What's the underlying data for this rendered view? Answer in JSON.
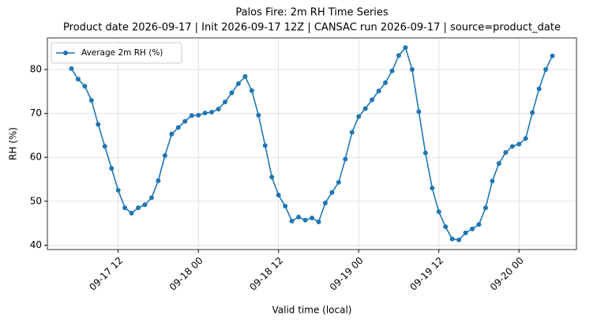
{
  "chart_data": {
    "type": "line",
    "title": "Palos Fire: 2m RH Time Series",
    "subtitle": "Product date 2026-09-17 | Init 2026-09-17 12Z | CANSAC run 2026-09-17 | source=product_date",
    "x_label": "Valid time (local)",
    "y_label": "RH (%)",
    "x": [
      "09-17 05",
      "09-17 06",
      "09-17 07",
      "09-17 08",
      "09-17 09",
      "09-17 10",
      "09-17 11",
      "09-17 12",
      "09-17 13",
      "09-17 14",
      "09-17 15",
      "09-17 16",
      "09-17 17",
      "09-17 18",
      "09-17 19",
      "09-17 20",
      "09-17 21",
      "09-17 22",
      "09-17 23",
      "09-18 00",
      "09-18 01",
      "09-18 02",
      "09-18 03",
      "09-18 04",
      "09-18 05",
      "09-18 06",
      "09-18 07",
      "09-18 08",
      "09-18 09",
      "09-18 10",
      "09-18 11",
      "09-18 12",
      "09-18 13",
      "09-18 14",
      "09-18 15",
      "09-18 16",
      "09-18 17",
      "09-18 18",
      "09-18 19",
      "09-18 20",
      "09-18 21",
      "09-18 22",
      "09-18 23",
      "09-19 00",
      "09-19 01",
      "09-19 02",
      "09-19 03",
      "09-19 04",
      "09-19 05",
      "09-19 06",
      "09-19 07",
      "09-19 08",
      "09-19 09",
      "09-19 10",
      "09-19 11",
      "09-19 12",
      "09-19 13",
      "09-19 14",
      "09-19 15",
      "09-19 16",
      "09-19 17",
      "09-19 18",
      "09-19 19",
      "09-19 20",
      "09-19 21",
      "09-19 22",
      "09-19 23",
      "09-20 00",
      "09-20 01",
      "09-20 02",
      "09-20 03",
      "09-20 04",
      "09-20 05"
    ],
    "series": [
      {
        "name": "Average 2m RH (%)",
        "color": "#1f77b4",
        "values": [
          80.2,
          77.8,
          76.2,
          73,
          67.5,
          62.5,
          57.5,
          52.5,
          48.5,
          47.3,
          48.5,
          49.2,
          50.8,
          54.7,
          60.4,
          65.3,
          66.8,
          68.2,
          69.5,
          69.6,
          70.1,
          70.3,
          71,
          72.6,
          74.7,
          76.8,
          78.4,
          75.2,
          69.6,
          62.7,
          55.5,
          51.4,
          48.9,
          45.5,
          46.4,
          45.7,
          46.2,
          45.3,
          49.6,
          52,
          54.3,
          59.6,
          65.7,
          69.3,
          71.1,
          73.1,
          75.1,
          77,
          79.7,
          83.2,
          85,
          80,
          70.4,
          61,
          53,
          47.6,
          44.2,
          41.4,
          41.2,
          42.8,
          43.7,
          44.7,
          48.5,
          54.6,
          58.6,
          61.1,
          62.5,
          63,
          64.3,
          70.2,
          75.6,
          80,
          83.1
        ]
      }
    ],
    "xlim": [
      "09-17 01:24",
      "09-20 08:36"
    ],
    "xticks": [
      "09-17 12",
      "09-18 00",
      "09-18 12",
      "09-19 00",
      "09-19 12",
      "09-20 00"
    ],
    "ylim": [
      39.0,
      87.2
    ],
    "yticks": [
      40,
      50,
      60,
      70,
      80
    ],
    "grid": true,
    "legend": "upper left"
  }
}
